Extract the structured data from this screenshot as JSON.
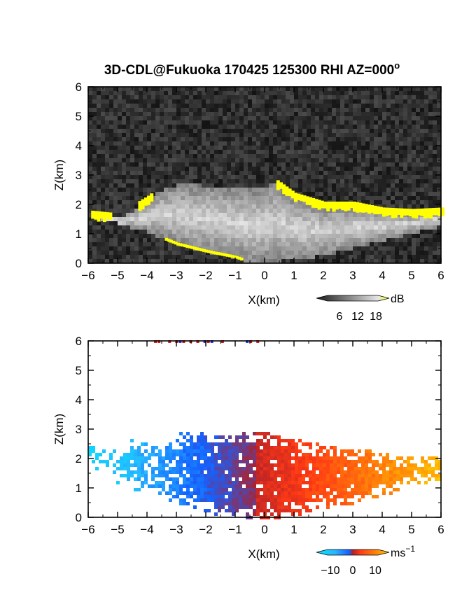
{
  "title": "3D-CDL@Fukuoka 170425 125300 RHI AZ=000",
  "title_superscript": "o",
  "colors": {
    "highlight": "#ffff00",
    "gray_low": "#1a1a1a",
    "gray_high": "#e6e6e6",
    "negative_velocity": "#1e64ff",
    "positive_velocity": "#ff4a14",
    "velocity_scale": [
      "#00e5ff",
      "#28b8ff",
      "#1460ff",
      "#b0202a",
      "#ff3a14",
      "#ff7d0a",
      "#ffc800"
    ]
  },
  "chart_data": [
    {
      "type": "heatmap",
      "panel": "reflectivity",
      "xlabel": "X(km)",
      "ylabel": "Z(km)",
      "xlim": [
        -6,
        6
      ],
      "ylim": [
        0,
        6
      ],
      "xticks": [
        "-6",
        "-5",
        "-4",
        "-3",
        "-2",
        "-1",
        "0",
        "1",
        "2",
        "3",
        "4",
        "5",
        "6"
      ],
      "yticks": [
        "0",
        "1",
        "2",
        "3",
        "4",
        "5",
        "6"
      ],
      "colorbar": {
        "unit": "dB",
        "ticks": [
          "6",
          "12",
          "18"
        ],
        "range": [
          0,
          20
        ]
      },
      "cloud_top_km": [
        [
          -6,
          1.7
        ],
        [
          -5,
          1.6
        ],
        [
          -4.5,
          1.9
        ],
        [
          -4,
          2.2
        ],
        [
          -3.5,
          2.6
        ],
        [
          -3,
          2.75
        ],
        [
          -2,
          2.7
        ],
        [
          -1,
          2.65
        ],
        [
          -0.5,
          2.65
        ],
        [
          0,
          2.7
        ],
        [
          0.3,
          2.8
        ],
        [
          1,
          2.3
        ],
        [
          2,
          2.0
        ],
        [
          3,
          2.0
        ],
        [
          4,
          1.8
        ],
        [
          5,
          1.75
        ],
        [
          6,
          1.8
        ]
      ],
      "cloud_base_km": [
        [
          -6,
          1.7
        ],
        [
          -5,
          1.4
        ],
        [
          -4,
          1.1
        ],
        [
          -3,
          0.7
        ],
        [
          -2,
          0.45
        ],
        [
          -1,
          0.25
        ],
        [
          -0.5,
          0.05
        ],
        [
          0,
          0.1
        ],
        [
          1,
          0.2
        ],
        [
          2,
          0.35
        ],
        [
          3,
          0.6
        ],
        [
          4,
          0.85
        ],
        [
          5,
          1.1
        ],
        [
          6,
          1.35
        ]
      ]
    },
    {
      "type": "heatmap",
      "panel": "doppler-velocity",
      "xlabel": "X(km)",
      "ylabel": "Z(km)",
      "xlim": [
        -6,
        6
      ],
      "ylim": [
        0,
        6
      ],
      "xticks": [
        "-6",
        "-5",
        "-4",
        "-3",
        "-2",
        "-1",
        "0",
        "1",
        "2",
        "3",
        "4",
        "5",
        "6"
      ],
      "yticks": [
        "0",
        "1",
        "2",
        "3",
        "4",
        "5",
        "6"
      ],
      "colorbar": {
        "unit": "ms",
        "unit_exponent": "−1",
        "ticks": [
          "−10",
          "0",
          "10"
        ],
        "range": [
          -15,
          15
        ]
      },
      "echo_top_km": [
        [
          -6,
          2.8
        ],
        [
          -5,
          2.3
        ],
        [
          -4.3,
          3.0
        ],
        [
          -3.5,
          2.6
        ],
        [
          -3,
          2.95
        ],
        [
          -2,
          2.9
        ],
        [
          -1,
          2.9
        ],
        [
          0,
          2.95
        ],
        [
          1,
          2.7
        ],
        [
          2,
          2.5
        ],
        [
          3,
          2.4
        ],
        [
          4,
          2.25
        ],
        [
          5,
          2.1
        ],
        [
          6,
          2.15
        ]
      ],
      "echo_base_km": [
        [
          -6,
          1.8
        ],
        [
          -5,
          1.2
        ],
        [
          -4,
          0.8
        ],
        [
          -3,
          0.5
        ],
        [
          -2,
          0.2
        ],
        [
          -1,
          0.05
        ],
        [
          0,
          0.0
        ],
        [
          1,
          0.1
        ],
        [
          2,
          0.3
        ],
        [
          3,
          0.5
        ],
        [
          4,
          0.8
        ],
        [
          5,
          1.1
        ],
        [
          6,
          1.3
        ]
      ],
      "zero_velocity_line_x_km": -0.3
    }
  ]
}
